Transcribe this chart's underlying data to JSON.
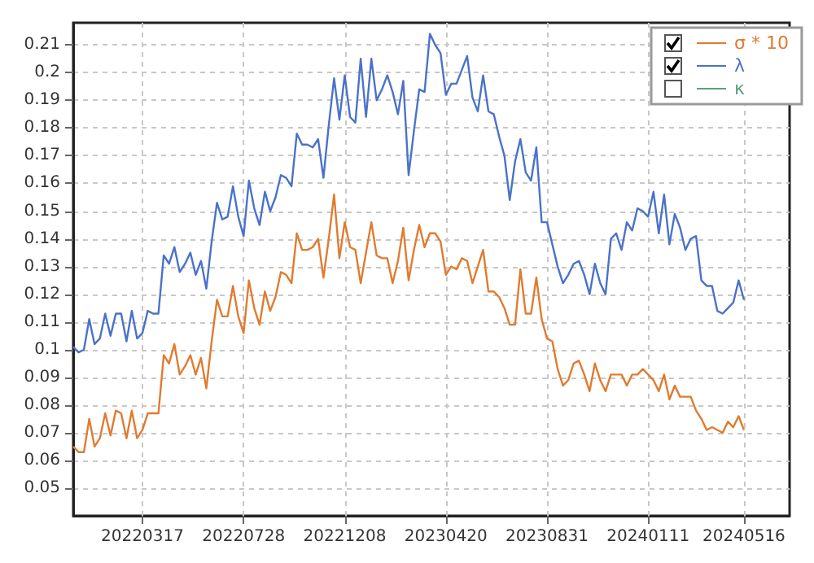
{
  "chart_data": {
    "type": "line",
    "x": [
      "2021-12-16",
      "2021-12-23",
      "2021-12-30",
      "2022-01-06",
      "2022-01-13",
      "2022-01-20",
      "2022-01-27",
      "2022-02-03",
      "2022-02-10",
      "2022-02-17",
      "2022-02-24",
      "2022-03-03",
      "2022-03-10",
      "2022-03-17",
      "2022-03-24",
      "2022-03-31",
      "2022-04-07",
      "2022-04-14",
      "2022-04-21",
      "2022-04-28",
      "2022-05-05",
      "2022-05-12",
      "2022-05-19",
      "2022-05-26",
      "2022-06-02",
      "2022-06-09",
      "2022-06-16",
      "2022-06-23",
      "2022-06-30",
      "2022-07-07",
      "2022-07-14",
      "2022-07-21",
      "2022-07-28",
      "2022-08-04",
      "2022-08-11",
      "2022-08-18",
      "2022-08-25",
      "2022-09-01",
      "2022-09-08",
      "2022-09-15",
      "2022-09-22",
      "2022-09-29",
      "2022-10-06",
      "2022-10-13",
      "2022-10-20",
      "2022-10-27",
      "2022-11-03",
      "2022-11-10",
      "2022-11-17",
      "2022-11-24",
      "2022-12-01",
      "2022-12-08",
      "2022-12-15",
      "2022-12-22",
      "2022-12-29",
      "2023-01-05",
      "2023-01-12",
      "2023-01-19",
      "2023-01-26",
      "2023-02-02",
      "2023-02-09",
      "2023-02-16",
      "2023-02-23",
      "2023-03-02",
      "2023-03-09",
      "2023-03-16",
      "2023-03-23",
      "2023-03-30",
      "2023-04-06",
      "2023-04-13",
      "2023-04-20",
      "2023-04-27",
      "2023-05-04",
      "2023-05-11",
      "2023-05-18",
      "2023-05-25",
      "2023-06-01",
      "2023-06-08",
      "2023-06-15",
      "2023-06-22",
      "2023-06-29",
      "2023-07-06",
      "2023-07-13",
      "2023-07-20",
      "2023-07-27",
      "2023-08-03",
      "2023-08-10",
      "2023-08-17",
      "2023-08-24",
      "2023-08-31",
      "2023-09-07",
      "2023-09-14",
      "2023-09-21",
      "2023-09-28",
      "2023-10-05",
      "2023-10-12",
      "2023-10-19",
      "2023-10-26",
      "2023-11-02",
      "2023-11-09",
      "2023-11-16",
      "2023-11-23",
      "2023-11-30",
      "2023-12-07",
      "2023-12-14",
      "2023-12-21",
      "2023-12-28",
      "2024-01-04",
      "2024-01-11",
      "2024-01-18",
      "2024-01-25",
      "2024-02-01",
      "2024-02-08",
      "2024-02-15",
      "2024-02-22",
      "2024-02-29",
      "2024-03-07",
      "2024-03-14",
      "2024-03-21",
      "2024-03-28",
      "2024-04-04",
      "2024-04-11",
      "2024-04-18",
      "2024-04-25",
      "2024-05-02",
      "2024-05-09",
      "2024-05-16"
    ],
    "series": [
      {
        "name": "σ * 10",
        "color": "#e07b30",
        "values": [
          0.065,
          0.063,
          0.063,
          0.075,
          0.065,
          0.068,
          0.077,
          0.069,
          0.078,
          0.077,
          0.068,
          0.078,
          0.068,
          0.071,
          0.077,
          0.077,
          0.077,
          0.098,
          0.095,
          0.102,
          0.091,
          0.094,
          0.098,
          0.091,
          0.097,
          0.086,
          0.103,
          0.118,
          0.112,
          0.112,
          0.123,
          0.112,
          0.106,
          0.125,
          0.115,
          0.109,
          0.121,
          0.114,
          0.119,
          0.128,
          0.127,
          0.124,
          0.142,
          0.136,
          0.136,
          0.137,
          0.14,
          0.126,
          0.14,
          0.156,
          0.133,
          0.146,
          0.137,
          0.136,
          0.124,
          0.135,
          0.146,
          0.134,
          0.133,
          0.133,
          0.124,
          0.132,
          0.144,
          0.125,
          0.136,
          0.145,
          0.137,
          0.142,
          0.142,
          0.139,
          0.127,
          0.13,
          0.129,
          0.133,
          0.132,
          0.124,
          0.13,
          0.136,
          0.121,
          0.121,
          0.119,
          0.115,
          0.109,
          0.109,
          0.129,
          0.113,
          0.113,
          0.126,
          0.111,
          0.104,
          0.103,
          0.093,
          0.087,
          0.089,
          0.095,
          0.096,
          0.091,
          0.085,
          0.095,
          0.089,
          0.085,
          0.091,
          0.091,
          0.091,
          0.087,
          0.091,
          0.091,
          0.093,
          0.091,
          0.089,
          0.085,
          0.091,
          0.082,
          0.087,
          0.083,
          0.083,
          0.083,
          0.078,
          0.075,
          0.071,
          0.072,
          0.071,
          0.07,
          0.074,
          0.072,
          0.076,
          0.071
        ]
      },
      {
        "name": "λ",
        "color": "#4a72c8",
        "values": [
          0.101,
          0.099,
          0.1,
          0.111,
          0.102,
          0.104,
          0.113,
          0.105,
          0.113,
          0.113,
          0.103,
          0.114,
          0.104,
          0.106,
          0.114,
          0.113,
          0.113,
          0.134,
          0.131,
          0.137,
          0.128,
          0.131,
          0.135,
          0.127,
          0.132,
          0.122,
          0.139,
          0.153,
          0.147,
          0.148,
          0.159,
          0.148,
          0.141,
          0.161,
          0.151,
          0.145,
          0.157,
          0.15,
          0.155,
          0.163,
          0.162,
          0.159,
          0.178,
          0.174,
          0.174,
          0.173,
          0.176,
          0.162,
          0.181,
          0.198,
          0.183,
          0.199,
          0.184,
          0.182,
          0.205,
          0.184,
          0.205,
          0.19,
          0.194,
          0.199,
          0.193,
          0.185,
          0.197,
          0.163,
          0.179,
          0.194,
          0.193,
          0.214,
          0.21,
          0.207,
          0.192,
          0.196,
          0.196,
          0.201,
          0.206,
          0.191,
          0.186,
          0.199,
          0.186,
          0.185,
          0.177,
          0.17,
          0.154,
          0.168,
          0.176,
          0.164,
          0.161,
          0.173,
          0.146,
          0.146,
          0.138,
          0.13,
          0.124,
          0.127,
          0.131,
          0.132,
          0.127,
          0.12,
          0.131,
          0.124,
          0.12,
          0.14,
          0.142,
          0.136,
          0.146,
          0.143,
          0.151,
          0.15,
          0.148,
          0.157,
          0.142,
          0.156,
          0.138,
          0.149,
          0.144,
          0.136,
          0.14,
          0.141,
          0.125,
          0.123,
          0.123,
          0.114,
          0.113,
          0.115,
          0.117,
          0.125,
          0.118
        ]
      },
      {
        "name": "κ",
        "color": "#5aa37a",
        "values": [
          null,
          null,
          null,
          null,
          null,
          null,
          null,
          null,
          null,
          null,
          null,
          null,
          null,
          null,
          null,
          null,
          null,
          null,
          null,
          null,
          null,
          null,
          null,
          null,
          null,
          null,
          null,
          null,
          null,
          null,
          null,
          null,
          null,
          null,
          null,
          null,
          null,
          null,
          null,
          null,
          null,
          null,
          null,
          null,
          null,
          null,
          null,
          null,
          null,
          null,
          null,
          null,
          null,
          null,
          null,
          null,
          null,
          null,
          null,
          null,
          null,
          null,
          null,
          null,
          null,
          null,
          null,
          null,
          null,
          null,
          null,
          null,
          null,
          null,
          null,
          null,
          null,
          null,
          null,
          null,
          null,
          null,
          null,
          null,
          null,
          null,
          null,
          null,
          null,
          null,
          null,
          null,
          null,
          null,
          null,
          null,
          null,
          null,
          null,
          null,
          null,
          null,
          null,
          null,
          null,
          null,
          null,
          null,
          null,
          null,
          null,
          null,
          null,
          null,
          null,
          null,
          null,
          null,
          null,
          null,
          null,
          null,
          null,
          null,
          null,
          null,
          null
        ]
      }
    ],
    "xlim": [
      "2021-12-16",
      "2024-07-15"
    ],
    "xticks": [
      {
        "value": "2022-03-17",
        "label": "20220317"
      },
      {
        "value": "2022-07-28",
        "label": "20220728"
      },
      {
        "value": "2022-12-08",
        "label": "20221208"
      },
      {
        "value": "2023-04-20",
        "label": "20230420"
      },
      {
        "value": "2023-08-31",
        "label": "20230831"
      },
      {
        "value": "2024-01-11",
        "label": "20240111"
      },
      {
        "value": "2024-05-16",
        "label": "20240516"
      }
    ],
    "ylim": [
      0.04,
      0.218
    ],
    "yticks": [
      0.05,
      0.06,
      0.07,
      0.08,
      0.09,
      0.1,
      0.11,
      0.12,
      0.13,
      0.14,
      0.15,
      0.16,
      0.17,
      0.18,
      0.19,
      0.2,
      0.21
    ],
    "grid": true,
    "legend": "top right",
    "marker": "none",
    "line_style": "solid"
  }
}
